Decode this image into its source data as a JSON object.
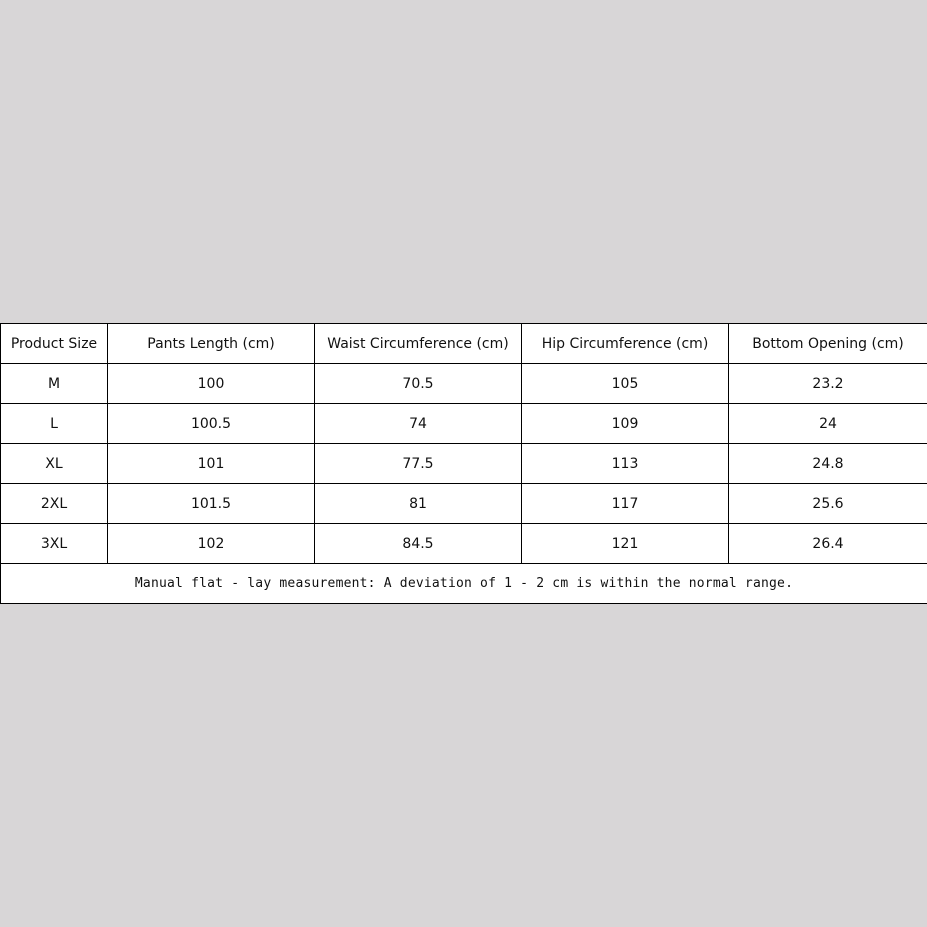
{
  "table": {
    "headers": [
      "Product Size",
      "Pants Length (cm)",
      "Waist Circumference (cm)",
      "Hip Circumference (cm)",
      "Bottom Opening (cm)"
    ],
    "rows": [
      [
        "M",
        "100",
        "70.5",
        "105",
        "23.2"
      ],
      [
        "L",
        "100.5",
        "74",
        "109",
        "24"
      ],
      [
        "XL",
        "101",
        "77.5",
        "113",
        "24.8"
      ],
      [
        "2XL",
        "101.5",
        "81",
        "117",
        "25.6"
      ],
      [
        "3XL",
        "102",
        "84.5",
        "121",
        "26.4"
      ]
    ],
    "note": "Manual flat - lay measurement: A deviation of 1 - 2 cm is within the normal range."
  }
}
